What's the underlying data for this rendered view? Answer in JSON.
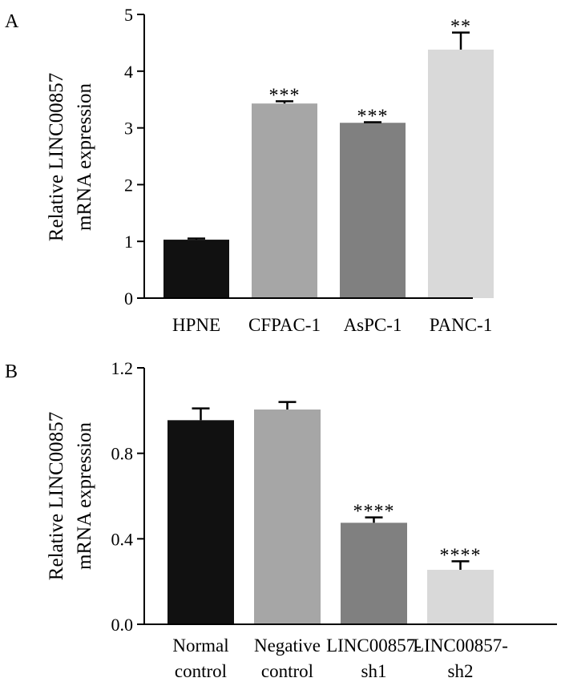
{
  "chart_data": [
    {
      "panel": "A",
      "type": "bar",
      "ylabel_lines": [
        "Relative LINC00857",
        "mRNA expression"
      ],
      "categories": [
        {
          "lines": [
            "HPNE"
          ]
        },
        {
          "lines": [
            "CFPAC-1"
          ]
        },
        {
          "lines": [
            "AsPC-1"
          ]
        },
        {
          "lines": [
            "PANC-1"
          ]
        }
      ],
      "values": [
        1.03,
        3.43,
        3.09,
        4.38
      ],
      "errors": [
        0.02,
        0.04,
        0.01,
        0.3
      ],
      "significance": [
        "",
        "***",
        "***",
        "**"
      ],
      "colors": [
        "#111111",
        "#a6a6a6",
        "#808080",
        "#d9d9d9"
      ],
      "ylim": [
        0,
        5
      ],
      "yticks": [
        0,
        1,
        2,
        3,
        4,
        5
      ],
      "ytick_labels": [
        "0",
        "1",
        "2",
        "3",
        "4",
        "5"
      ]
    },
    {
      "panel": "B",
      "type": "bar",
      "ylabel_lines": [
        "Relative LINC00857",
        "mRNA expression"
      ],
      "categories": [
        {
          "lines": [
            "Normal",
            "control"
          ]
        },
        {
          "lines": [
            "Negative",
            "control"
          ]
        },
        {
          "lines": [
            "LINC00857-",
            "sh1"
          ]
        },
        {
          "lines": [
            "LINC00857-",
            "sh2"
          ]
        }
      ],
      "values": [
        0.955,
        1.005,
        0.475,
        0.255
      ],
      "errors": [
        0.055,
        0.035,
        0.025,
        0.04
      ],
      "significance": [
        "",
        "",
        "****",
        "****"
      ],
      "colors": [
        "#111111",
        "#a6a6a6",
        "#808080",
        "#d9d9d9"
      ],
      "ylim": [
        0,
        1.2
      ],
      "yticks": [
        0,
        0.4,
        0.8,
        1.2
      ],
      "ytick_labels": [
        "0.0",
        "0.4",
        "0.8",
        "1.2"
      ]
    }
  ]
}
